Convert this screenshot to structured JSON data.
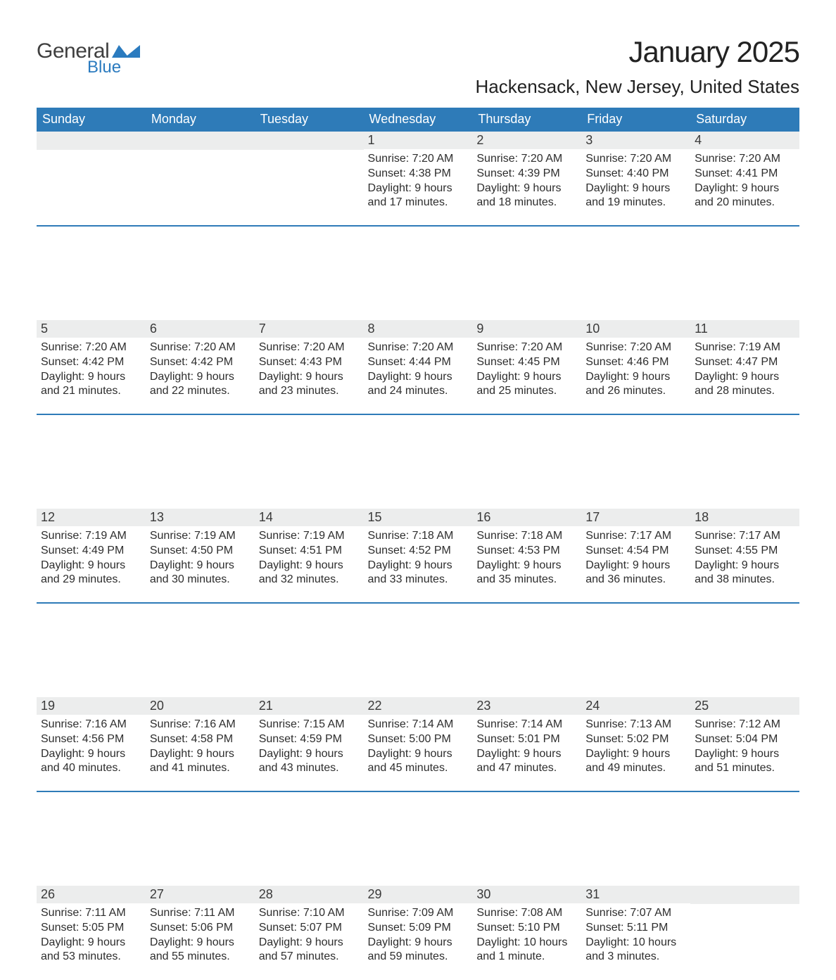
{
  "brand": {
    "word1": "General",
    "word2": "Blue",
    "flag_color": "#2b7bbf",
    "text_gray": "#3f3f3f"
  },
  "title": "January 2025",
  "location": "Hackensack, New Jersey, United States",
  "colors": {
    "header_bg": "#2e7bb8",
    "header_text": "#ffffff",
    "band_bg": "#eceded",
    "body_text": "#2d2d2d",
    "page_bg": "#ffffff"
  },
  "day_headers": [
    "Sunday",
    "Monday",
    "Tuesday",
    "Wednesday",
    "Thursday",
    "Friday",
    "Saturday"
  ],
  "weeks": [
    [
      null,
      null,
      null,
      {
        "n": "1",
        "sunrise": "Sunrise: 7:20 AM",
        "sunset": "Sunset: 4:38 PM",
        "dl1": "Daylight: 9 hours",
        "dl2": "and 17 minutes."
      },
      {
        "n": "2",
        "sunrise": "Sunrise: 7:20 AM",
        "sunset": "Sunset: 4:39 PM",
        "dl1": "Daylight: 9 hours",
        "dl2": "and 18 minutes."
      },
      {
        "n": "3",
        "sunrise": "Sunrise: 7:20 AM",
        "sunset": "Sunset: 4:40 PM",
        "dl1": "Daylight: 9 hours",
        "dl2": "and 19 minutes."
      },
      {
        "n": "4",
        "sunrise": "Sunrise: 7:20 AM",
        "sunset": "Sunset: 4:41 PM",
        "dl1": "Daylight: 9 hours",
        "dl2": "and 20 minutes."
      }
    ],
    [
      {
        "n": "5",
        "sunrise": "Sunrise: 7:20 AM",
        "sunset": "Sunset: 4:42 PM",
        "dl1": "Daylight: 9 hours",
        "dl2": "and 21 minutes."
      },
      {
        "n": "6",
        "sunrise": "Sunrise: 7:20 AM",
        "sunset": "Sunset: 4:42 PM",
        "dl1": "Daylight: 9 hours",
        "dl2": "and 22 minutes."
      },
      {
        "n": "7",
        "sunrise": "Sunrise: 7:20 AM",
        "sunset": "Sunset: 4:43 PM",
        "dl1": "Daylight: 9 hours",
        "dl2": "and 23 minutes."
      },
      {
        "n": "8",
        "sunrise": "Sunrise: 7:20 AM",
        "sunset": "Sunset: 4:44 PM",
        "dl1": "Daylight: 9 hours",
        "dl2": "and 24 minutes."
      },
      {
        "n": "9",
        "sunrise": "Sunrise: 7:20 AM",
        "sunset": "Sunset: 4:45 PM",
        "dl1": "Daylight: 9 hours",
        "dl2": "and 25 minutes."
      },
      {
        "n": "10",
        "sunrise": "Sunrise: 7:20 AM",
        "sunset": "Sunset: 4:46 PM",
        "dl1": "Daylight: 9 hours",
        "dl2": "and 26 minutes."
      },
      {
        "n": "11",
        "sunrise": "Sunrise: 7:19 AM",
        "sunset": "Sunset: 4:47 PM",
        "dl1": "Daylight: 9 hours",
        "dl2": "and 28 minutes."
      }
    ],
    [
      {
        "n": "12",
        "sunrise": "Sunrise: 7:19 AM",
        "sunset": "Sunset: 4:49 PM",
        "dl1": "Daylight: 9 hours",
        "dl2": "and 29 minutes."
      },
      {
        "n": "13",
        "sunrise": "Sunrise: 7:19 AM",
        "sunset": "Sunset: 4:50 PM",
        "dl1": "Daylight: 9 hours",
        "dl2": "and 30 minutes."
      },
      {
        "n": "14",
        "sunrise": "Sunrise: 7:19 AM",
        "sunset": "Sunset: 4:51 PM",
        "dl1": "Daylight: 9 hours",
        "dl2": "and 32 minutes."
      },
      {
        "n": "15",
        "sunrise": "Sunrise: 7:18 AM",
        "sunset": "Sunset: 4:52 PM",
        "dl1": "Daylight: 9 hours",
        "dl2": "and 33 minutes."
      },
      {
        "n": "16",
        "sunrise": "Sunrise: 7:18 AM",
        "sunset": "Sunset: 4:53 PM",
        "dl1": "Daylight: 9 hours",
        "dl2": "and 35 minutes."
      },
      {
        "n": "17",
        "sunrise": "Sunrise: 7:17 AM",
        "sunset": "Sunset: 4:54 PM",
        "dl1": "Daylight: 9 hours",
        "dl2": "and 36 minutes."
      },
      {
        "n": "18",
        "sunrise": "Sunrise: 7:17 AM",
        "sunset": "Sunset: 4:55 PM",
        "dl1": "Daylight: 9 hours",
        "dl2": "and 38 minutes."
      }
    ],
    [
      {
        "n": "19",
        "sunrise": "Sunrise: 7:16 AM",
        "sunset": "Sunset: 4:56 PM",
        "dl1": "Daylight: 9 hours",
        "dl2": "and 40 minutes."
      },
      {
        "n": "20",
        "sunrise": "Sunrise: 7:16 AM",
        "sunset": "Sunset: 4:58 PM",
        "dl1": "Daylight: 9 hours",
        "dl2": "and 41 minutes."
      },
      {
        "n": "21",
        "sunrise": "Sunrise: 7:15 AM",
        "sunset": "Sunset: 4:59 PM",
        "dl1": "Daylight: 9 hours",
        "dl2": "and 43 minutes."
      },
      {
        "n": "22",
        "sunrise": "Sunrise: 7:14 AM",
        "sunset": "Sunset: 5:00 PM",
        "dl1": "Daylight: 9 hours",
        "dl2": "and 45 minutes."
      },
      {
        "n": "23",
        "sunrise": "Sunrise: 7:14 AM",
        "sunset": "Sunset: 5:01 PM",
        "dl1": "Daylight: 9 hours",
        "dl2": "and 47 minutes."
      },
      {
        "n": "24",
        "sunrise": "Sunrise: 7:13 AM",
        "sunset": "Sunset: 5:02 PM",
        "dl1": "Daylight: 9 hours",
        "dl2": "and 49 minutes."
      },
      {
        "n": "25",
        "sunrise": "Sunrise: 7:12 AM",
        "sunset": "Sunset: 5:04 PM",
        "dl1": "Daylight: 9 hours",
        "dl2": "and 51 minutes."
      }
    ],
    [
      {
        "n": "26",
        "sunrise": "Sunrise: 7:11 AM",
        "sunset": "Sunset: 5:05 PM",
        "dl1": "Daylight: 9 hours",
        "dl2": "and 53 minutes."
      },
      {
        "n": "27",
        "sunrise": "Sunrise: 7:11 AM",
        "sunset": "Sunset: 5:06 PM",
        "dl1": "Daylight: 9 hours",
        "dl2": "and 55 minutes."
      },
      {
        "n": "28",
        "sunrise": "Sunrise: 7:10 AM",
        "sunset": "Sunset: 5:07 PM",
        "dl1": "Daylight: 9 hours",
        "dl2": "and 57 minutes."
      },
      {
        "n": "29",
        "sunrise": "Sunrise: 7:09 AM",
        "sunset": "Sunset: 5:09 PM",
        "dl1": "Daylight: 9 hours",
        "dl2": "and 59 minutes."
      },
      {
        "n": "30",
        "sunrise": "Sunrise: 7:08 AM",
        "sunset": "Sunset: 5:10 PM",
        "dl1": "Daylight: 10 hours",
        "dl2": "and 1 minute."
      },
      {
        "n": "31",
        "sunrise": "Sunrise: 7:07 AM",
        "sunset": "Sunset: 5:11 PM",
        "dl1": "Daylight: 10 hours",
        "dl2": "and 3 minutes."
      },
      null
    ]
  ]
}
